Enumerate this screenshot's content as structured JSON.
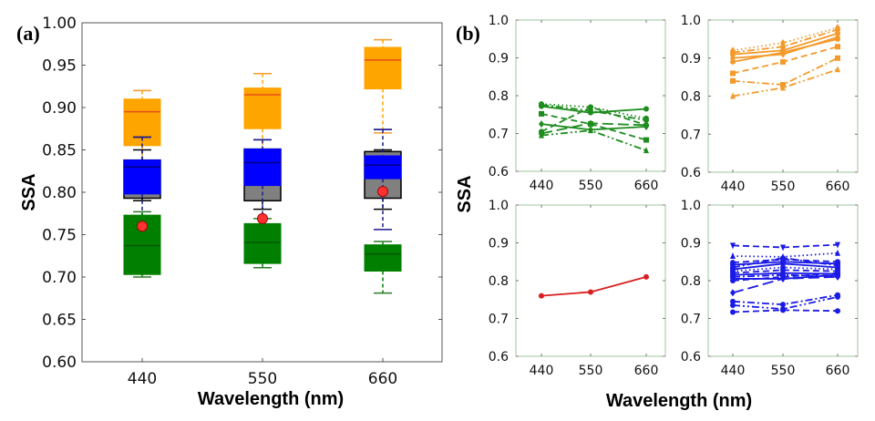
{
  "chart_data": [
    {
      "id": "a",
      "type": "box",
      "panel_label": "(a)",
      "xlabel": "Wavelength (nm)",
      "ylabel": "SSA",
      "ylim": [
        0.6,
        1.0
      ],
      "yticks": [
        "0.60",
        "0.65",
        "0.70",
        "0.75",
        "0.80",
        "0.85",
        "0.90",
        "0.95",
        "1.00"
      ],
      "categories": [
        "440",
        "550",
        "660"
      ],
      "series": [
        {
          "name": "orange",
          "color": "#FFA500",
          "median_color": "#E8501A",
          "boxes": [
            {
              "whislo": 0.8,
              "q1": 0.855,
              "med": 0.895,
              "q3": 0.91,
              "whishi": 0.92
            },
            {
              "whislo": 0.82,
              "q1": 0.875,
              "med": 0.915,
              "q3": 0.923,
              "whishi": 0.94
            },
            {
              "whislo": 0.87,
              "q1": 0.922,
              "med": 0.956,
              "q3": 0.971,
              "whishi": 0.98
            }
          ]
        },
        {
          "name": "gray",
          "color": "#808080",
          "median_color": "#000000",
          "edge": "#000000",
          "boxes": [
            {
              "whislo": 0.79,
              "q1": 0.793,
              "med": 0.815,
              "q3": 0.838,
              "whishi": 0.85
            },
            {
              "whislo": 0.78,
              "q1": 0.79,
              "med": 0.818,
              "q3": 0.851,
              "whishi": 0.84
            },
            {
              "whislo": 0.78,
              "q1": 0.793,
              "med": 0.828,
              "q3": 0.848,
              "whishi": 0.85
            }
          ]
        },
        {
          "name": "blue",
          "color": "#0000FF",
          "median_color": "#000080",
          "boxes": [
            {
              "whislo": 0.734,
              "q1": 0.798,
              "med": 0.83,
              "q3": 0.838,
              "whishi": 0.865
            },
            {
              "whislo": 0.727,
              "q1": 0.808,
              "med": 0.835,
              "q3": 0.851,
              "whishi": 0.862
            },
            {
              "whislo": 0.756,
              "q1": 0.816,
              "med": 0.832,
              "q3": 0.843,
              "whishi": 0.874
            }
          ]
        },
        {
          "name": "green",
          "color": "#007F00",
          "median_color": "#005A00",
          "boxes": [
            {
              "whislo": 0.7,
              "q1": 0.703,
              "med": 0.737,
              "q3": 0.773,
              "whishi": 0.777
            },
            {
              "whislo": 0.711,
              "q1": 0.716,
              "med": 0.741,
              "q3": 0.763,
              "whishi": 0.769
            },
            {
              "whislo": 0.681,
              "q1": 0.707,
              "med": 0.727,
              "q3": 0.738,
              "whishi": 0.742
            }
          ]
        }
      ],
      "mean_points": {
        "name": "red",
        "color": "#FF3333",
        "values": [
          0.76,
          0.769,
          0.801
        ]
      }
    },
    {
      "id": "b",
      "type": "line",
      "panel_label": "(b)",
      "xlabel": "Wavelength (nm)",
      "ylabel": "SSA",
      "subplots": [
        {
          "name": "green",
          "color": "#1E8C1E",
          "ylim": [
            0.6,
            1.0
          ],
          "yticks": [
            "0.6",
            "0.7",
            "0.8",
            "0.9",
            "1.0"
          ],
          "x": [
            "440",
            "550",
            "660"
          ],
          "series": [
            {
              "values": [
                0.778,
                0.77,
                0.74
              ],
              "marker": "circle",
              "dash": "dot"
            },
            {
              "values": [
                0.772,
                0.755,
                0.765
              ],
              "marker": "circle",
              "dash": "solid"
            },
            {
              "values": [
                0.776,
                0.76,
                0.735
              ],
              "marker": "circle",
              "dash": "dashdot"
            },
            {
              "values": [
                0.752,
                0.725,
                0.683
              ],
              "marker": "square",
              "dash": "dash"
            },
            {
              "values": [
                0.725,
                0.71,
                0.718
              ],
              "marker": "diamond",
              "dash": "solid"
            },
            {
              "values": [
                0.705,
                0.77,
                0.722
              ],
              "marker": "circle",
              "dash": "dash"
            },
            {
              "values": [
                0.7,
                0.727,
                0.722
              ],
              "marker": "circle",
              "dash": "longdash"
            },
            {
              "values": [
                0.695,
                0.708,
                0.655
              ],
              "marker": "triangle",
              "dash": "dashdotdot"
            }
          ]
        },
        {
          "name": "orange",
          "color": "#F39A2B",
          "ylim": [
            0.6,
            1.0
          ],
          "yticks": [
            "0.6",
            "0.7",
            "0.8",
            "0.9",
            "1.0"
          ],
          "x": [
            "440",
            "550",
            "660"
          ],
          "series": [
            {
              "values": [
                0.92,
                0.94,
                0.98
              ],
              "marker": "diamond",
              "dash": "dot"
            },
            {
              "values": [
                0.915,
                0.93,
                0.975
              ],
              "marker": "circle",
              "dash": "dashdot"
            },
            {
              "values": [
                0.91,
                0.92,
                0.965
              ],
              "marker": "circle",
              "dash": "solid"
            },
            {
              "values": [
                0.9,
                0.91,
                0.955
              ],
              "marker": "diamond",
              "dash": "solid"
            },
            {
              "values": [
                0.89,
                0.915,
                0.95
              ],
              "marker": "circle",
              "dash": "solid"
            },
            {
              "values": [
                0.86,
                0.89,
                0.93
              ],
              "marker": "square",
              "dash": "dash"
            },
            {
              "values": [
                0.84,
                0.83,
                0.9
              ],
              "marker": "square",
              "dash": "dashdot"
            },
            {
              "values": [
                0.8,
                0.822,
                0.87
              ],
              "marker": "triangle",
              "dash": "dashdotdot"
            }
          ]
        },
        {
          "name": "red",
          "color": "#D81E1E",
          "ylim": [
            0.6,
            1.0
          ],
          "yticks": [
            "0.6",
            "0.7",
            "0.8",
            "0.9",
            "1.0"
          ],
          "x": [
            "440",
            "550",
            "660"
          ],
          "series": [
            {
              "values": [
                0.76,
                0.77,
                0.81
              ],
              "marker": "circle",
              "dash": "solid"
            }
          ]
        },
        {
          "name": "blue",
          "color": "#1A1AE6",
          "ylim": [
            0.6,
            1.0
          ],
          "yticks": [
            "0.6",
            "0.7",
            "0.8",
            "0.9",
            "1.0"
          ],
          "x": [
            "440",
            "550",
            "660"
          ],
          "series": [
            {
              "values": [
                0.893,
                0.888,
                0.895
              ],
              "marker": "triangle-down",
              "dash": "dash"
            },
            {
              "values": [
                0.865,
                0.863,
                0.873
              ],
              "marker": "triangle",
              "dash": "dot"
            },
            {
              "values": [
                0.848,
                0.856,
                0.85
              ],
              "marker": "circle",
              "dash": "dash"
            },
            {
              "values": [
                0.842,
                0.85,
                0.845
              ],
              "marker": "circle",
              "dash": "solid"
            },
            {
              "values": [
                0.835,
                0.86,
                0.84
              ],
              "marker": "circle",
              "dash": "dashdot"
            },
            {
              "values": [
                0.83,
                0.845,
                0.835
              ],
              "marker": "circle",
              "dash": "solid"
            },
            {
              "values": [
                0.825,
                0.835,
                0.83
              ],
              "marker": "circle",
              "dash": "dot"
            },
            {
              "values": [
                0.82,
                0.828,
                0.825
              ],
              "marker": "circle",
              "dash": "dash"
            },
            {
              "values": [
                0.815,
                0.82,
                0.818
              ],
              "marker": "circle",
              "dash": "solid"
            },
            {
              "values": [
                0.81,
                0.815,
                0.812
              ],
              "marker": "circle",
              "dash": "dashdot"
            },
            {
              "values": [
                0.805,
                0.805,
                0.815
              ],
              "marker": "diamond",
              "dash": "solid"
            },
            {
              "values": [
                0.8,
                0.81,
                0.82
              ],
              "marker": "circle",
              "dash": "dash"
            },
            {
              "values": [
                0.768,
                0.805,
                0.81
              ],
              "marker": "diamond",
              "dash": "longdash"
            },
            {
              "values": [
                0.745,
                0.737,
                0.762
              ],
              "marker": "circle",
              "dash": "dashdot"
            },
            {
              "values": [
                0.735,
                0.725,
                0.757
              ],
              "marker": "circle",
              "dash": "dashdotdot"
            },
            {
              "values": [
                0.717,
                0.722,
                0.72
              ],
              "marker": "circle",
              "dash": "dash"
            }
          ]
        }
      ]
    }
  ]
}
